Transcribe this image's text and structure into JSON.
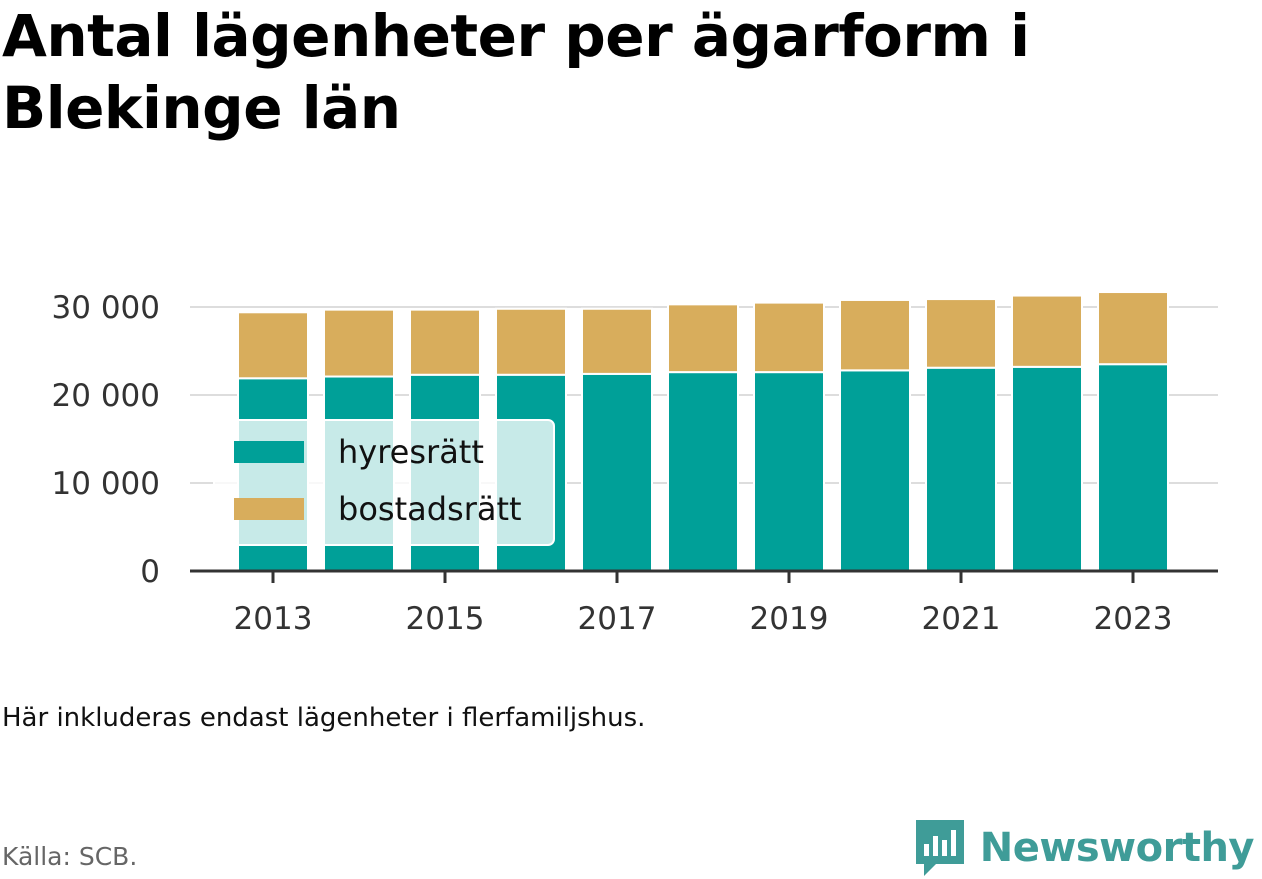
{
  "title": "Antal lägenheter per ägarform i Blekinge län",
  "note": "Här inkluderas endast lägenheter i flerfamiljshus.",
  "source": "Källa: SCB.",
  "brand": {
    "name": "Newsworthy",
    "icon": "newsworthy-logo-icon",
    "color": "#3f9c98"
  },
  "colors": {
    "hyresratt": "#00a098",
    "bostadsratt": "#d8ad5c",
    "axis": "#333333",
    "grid": "#dddddd"
  },
  "chart_data": {
    "type": "bar",
    "stacked": true,
    "categories": [
      "2013",
      "2014",
      "2015",
      "2016",
      "2017",
      "2018",
      "2019",
      "2020",
      "2021",
      "2022",
      "2023"
    ],
    "series": [
      {
        "name": "hyresrätt",
        "color": "#00a098",
        "values": [
          21900,
          22100,
          22300,
          22300,
          22400,
          22600,
          22600,
          22800,
          23100,
          23200,
          23500
        ]
      },
      {
        "name": "bostadsrätt",
        "color": "#d8ad5c",
        "values": [
          7500,
          7600,
          7400,
          7500,
          7400,
          7700,
          7900,
          8000,
          7800,
          8100,
          8200
        ]
      }
    ],
    "x_tick_labels": [
      "2013",
      "2015",
      "2017",
      "2019",
      "2021",
      "2023"
    ],
    "y_ticks": [
      0,
      10000,
      20000,
      30000
    ],
    "y_tick_labels": [
      "0",
      "10 000",
      "20 000",
      "30 000"
    ],
    "ylim": [
      0,
      31000
    ],
    "grid": true,
    "legend": {
      "placement": "bottom-left",
      "entries": [
        "hyresrätt",
        "bostadsrätt"
      ]
    },
    "xlabel": "",
    "ylabel": ""
  }
}
